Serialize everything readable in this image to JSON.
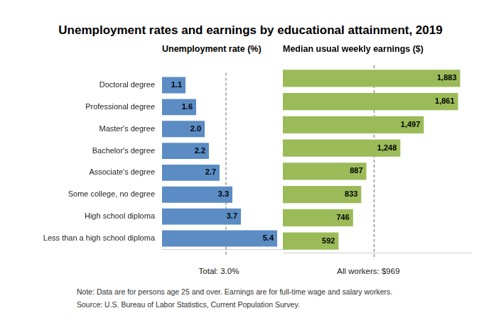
{
  "title": "Unemployment rates and earnings by educational attainment, 2019",
  "note": "Note: Data are for persons age 25 and over. Earnings are for full-time wage and salary workers.",
  "source": "Source: U.S. Bureau of Labor Statistics, Current Population Survey.",
  "chart_data": [
    {
      "type": "bar",
      "title": "Unemployment rate (%)",
      "orientation": "horizontal",
      "categories": [
        "Doctoral degree",
        "Professional degree",
        "Master's degree",
        "Bachelor's degree",
        "Associate's degree",
        "Some college, no degree",
        "High school diploma",
        "Less than a high school diploma"
      ],
      "values": [
        1.1,
        1.6,
        2.0,
        2.2,
        2.7,
        3.3,
        3.7,
        5.4
      ],
      "value_labels": [
        "1.1",
        "1.6",
        "2.0",
        "2.2",
        "2.7",
        "3.3",
        "3.7",
        "5.4"
      ],
      "color": "#5b8cc4",
      "xlim": [
        0,
        6
      ],
      "grid": false,
      "data_labels": true,
      "tick_labels": "y",
      "reference_line": {
        "value": 3.0,
        "label": "Total: 3.0%"
      }
    },
    {
      "type": "bar",
      "title": "Median usual weekly earnings ($)",
      "orientation": "horizontal",
      "categories": [
        "Doctoral degree",
        "Professional degree",
        "Master's degree",
        "Bachelor's degree",
        "Associate's degree",
        "Some college, no degree",
        "High school diploma",
        "Less than a high school diploma"
      ],
      "values": [
        1883,
        1861,
        1497,
        1248,
        887,
        833,
        746,
        592
      ],
      "value_labels": [
        "1,883",
        "1,861",
        "1,497",
        "1,248",
        "887",
        "833",
        "746",
        "592"
      ],
      "color": "#9bbb59",
      "xlim": [
        0,
        2000
      ],
      "grid": false,
      "data_labels": true,
      "tick_labels": false,
      "reference_line": {
        "value": 969,
        "label": "All workers: $969"
      }
    }
  ]
}
